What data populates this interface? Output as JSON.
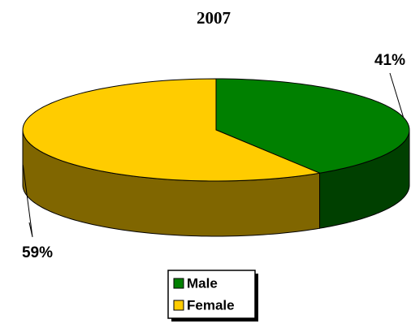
{
  "chart_data": {
    "type": "pie3d",
    "title": "2007",
    "categories": [
      "Male",
      "Female"
    ],
    "values": [
      41,
      59
    ],
    "value_labels": [
      "41%",
      "59%"
    ],
    "colors": [
      "#008000",
      "#ffcc00"
    ],
    "side_colors": [
      "#004000",
      "#806600"
    ],
    "legend": "bottom"
  }
}
